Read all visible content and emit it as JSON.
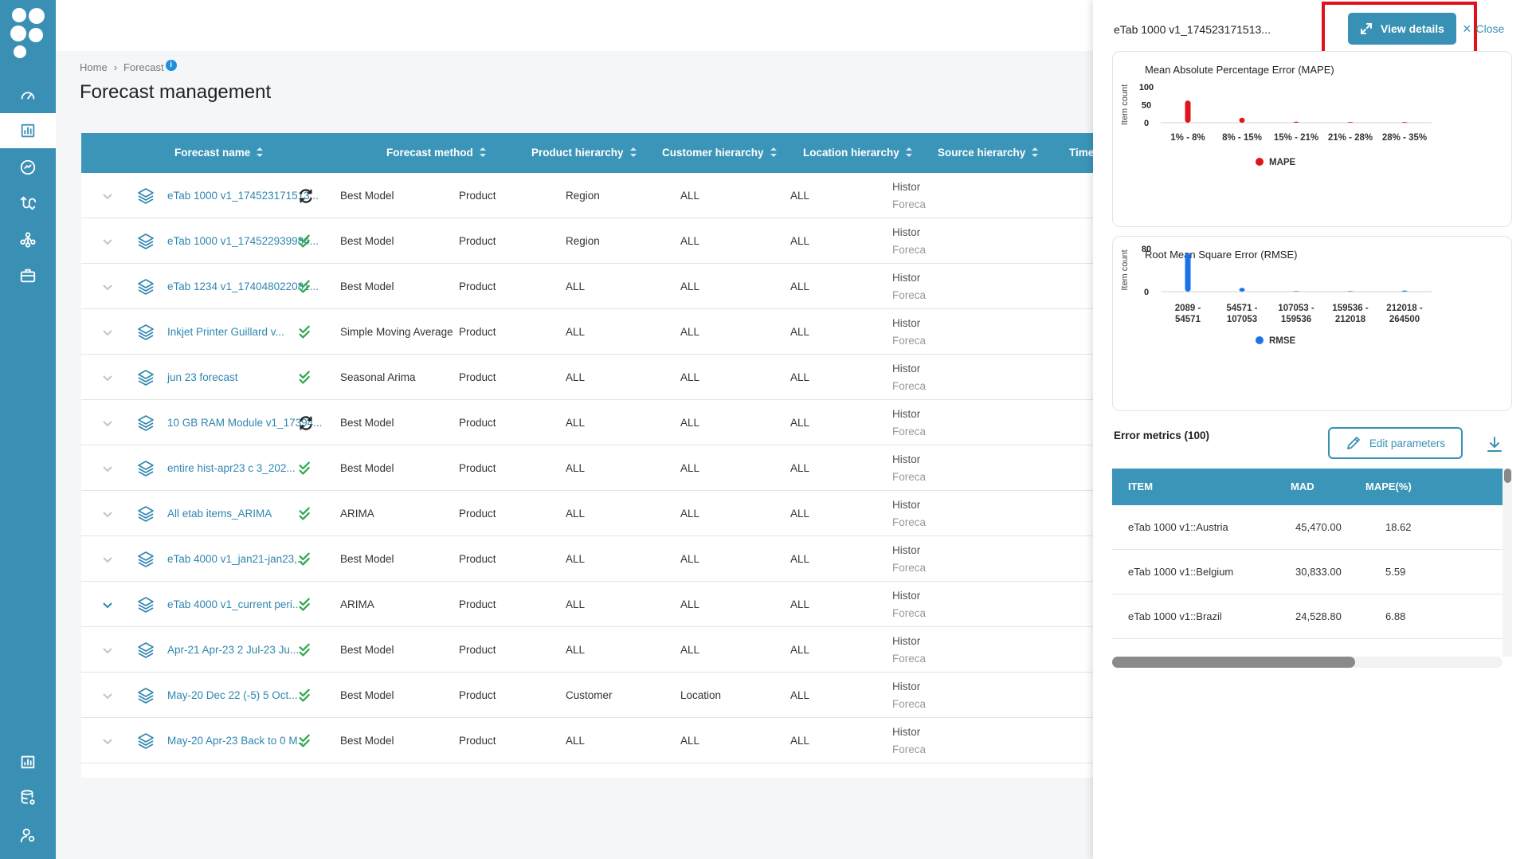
{
  "sidebar": {
    "logo": "app-logo",
    "items": [
      {
        "icon": "gauge-icon",
        "name": "nav-dashboard"
      },
      {
        "icon": "chart-icon",
        "name": "nav-forecast",
        "active": true
      },
      {
        "icon": "check-circle-icon",
        "name": "nav-analysis"
      },
      {
        "icon": "route-icon",
        "name": "nav-workflow"
      },
      {
        "icon": "hierarchy-icon",
        "name": "nav-hierarchy"
      },
      {
        "icon": "briefcase-icon",
        "name": "nav-tasks"
      },
      {
        "icon": "report-icon",
        "name": "nav-reports"
      },
      {
        "icon": "database-settings-icon",
        "name": "nav-data"
      },
      {
        "icon": "user-settings-icon",
        "name": "nav-users"
      }
    ]
  },
  "breadcrumb": {
    "home": "Home",
    "current": "Forecast",
    "info": "i"
  },
  "page_title": "Forecast management",
  "table": {
    "headers": {
      "name": "Forecast name",
      "method": "Forecast method",
      "product": "Product hierarchy",
      "customer": "Customer hierarchy",
      "location": "Location hierarchy",
      "source": "Source hierarchy",
      "time": "Time"
    },
    "rows": [
      {
        "name": "eTab 1000 v1_174523171513...",
        "status": "sync",
        "method": "Best Model",
        "product": "Product",
        "customer": "Region",
        "location": "ALL",
        "source": "ALL",
        "time1": "Histor",
        "time2": "Foreca"
      },
      {
        "name": "eTab 1000 v1_174522939984...",
        "status": "done",
        "method": "Best Model",
        "product": "Product",
        "customer": "Region",
        "location": "ALL",
        "source": "ALL",
        "time1": "Histor",
        "time2": "Foreca"
      },
      {
        "name": "eTab 1234 v1_174048022081...",
        "status": "done",
        "method": "Best Model",
        "product": "Product",
        "customer": "ALL",
        "location": "ALL",
        "source": "ALL",
        "time1": "Histor",
        "time2": "Foreca"
      },
      {
        "name": "Inkjet Printer Guillard v...",
        "status": "done",
        "method": "Simple Moving Average",
        "product": "Product",
        "customer": "ALL",
        "location": "ALL",
        "source": "ALL",
        "time1": "Histor",
        "time2": "Foreca"
      },
      {
        "name": "jun 23 forecast",
        "status": "done",
        "method": "Seasonal Arima",
        "product": "Product",
        "customer": "ALL",
        "location": "ALL",
        "source": "ALL",
        "time1": "Histor",
        "time2": "Foreca"
      },
      {
        "name": "10 GB RAM Module v1_17394...",
        "status": "sync",
        "method": "Best Model",
        "product": "Product",
        "customer": "ALL",
        "location": "ALL",
        "source": "ALL",
        "time1": "Histor",
        "time2": "Foreca"
      },
      {
        "name": "entire hist-apr23 c 3_202...",
        "status": "done",
        "method": "Best Model",
        "product": "Product",
        "customer": "ALL",
        "location": "ALL",
        "source": "ALL",
        "time1": "Histor",
        "time2": "Foreca"
      },
      {
        "name": "All etab items_ARIMA",
        "status": "done",
        "method": "ARIMA",
        "product": "Product",
        "customer": "ALL",
        "location": "ALL",
        "source": "ALL",
        "time1": "Histor",
        "time2": "Foreca"
      },
      {
        "name": "eTab 4000 v1_jan21-jan23,...",
        "status": "done",
        "method": "Best Model",
        "product": "Product",
        "customer": "ALL",
        "location": "ALL",
        "source": "ALL",
        "time1": "Histor",
        "time2": "Foreca"
      },
      {
        "name": "eTab 4000 v1_current peri...",
        "status": "done",
        "method": "ARIMA",
        "product": "Product",
        "customer": "ALL",
        "location": "ALL",
        "source": "ALL",
        "time1": "Histor",
        "time2": "Foreca",
        "expanded": true
      },
      {
        "name": "Apr-21    Apr-23    2    Jul-23 Ju...",
        "status": "done",
        "method": "Best Model",
        "product": "Product",
        "customer": "ALL",
        "location": "ALL",
        "source": "ALL",
        "time1": "Histor",
        "time2": "Foreca"
      },
      {
        "name": "May-20    Dec 22 (-5)    5 Oct...",
        "status": "done",
        "method": "Best Model",
        "product": "Product",
        "customer": "Customer",
        "location": "Location",
        "source": "ALL",
        "time1": "Histor",
        "time2": "Foreca"
      },
      {
        "name": "May-20    Apr-23    Back to 0 M...",
        "status": "done",
        "method": "Best Model",
        "product": "Product",
        "customer": "ALL",
        "location": "ALL",
        "source": "ALL",
        "time1": "Histor",
        "time2": "Foreca"
      }
    ]
  },
  "panel": {
    "title": "eTab 1000 v1_174523171513...",
    "view_details": "View details",
    "close": "Close",
    "metrics_title": "Error metrics (100)",
    "edit_parameters": "Edit parameters",
    "metrics_table": {
      "headers": {
        "item": "ITEM",
        "mad": "MAD",
        "mape": "MAPE(%)"
      },
      "rows": [
        {
          "item": "eTab 1000 v1::Austria",
          "mad": "45,470.00",
          "mape": "18.62"
        },
        {
          "item": "eTab 1000 v1::Belgium",
          "mad": "30,833.00",
          "mape": "5.59"
        },
        {
          "item": "eTab 1000 v1::Brazil",
          "mad": "24,528.80",
          "mape": "6.88"
        }
      ]
    }
  },
  "colors": {
    "accent": "#3b95b8",
    "mape": "#e0151b",
    "rmse": "#1a73e8",
    "done": "#2fa84f",
    "highlight": "#e0101c"
  },
  "chart_data": [
    {
      "type": "bar",
      "title": "Mean Absolute Percentage Error (MAPE)",
      "ylabel": "Item count",
      "xlabel": "",
      "categories": [
        "1% - 8%",
        "8% - 15%",
        "15% - 21%",
        "21% - 28%",
        "28% - 35%"
      ],
      "series": [
        {
          "name": "MAPE",
          "color": "#e0151b",
          "values": [
            62,
            14,
            3,
            2,
            2
          ]
        }
      ],
      "yticks": [
        0,
        50,
        100
      ],
      "ylim": [
        0,
        100
      ],
      "legend": "bottom-center"
    },
    {
      "type": "bar",
      "title": "Root Mean Square Error (RMSE)",
      "ylabel": "Item count",
      "xlabel": "",
      "categories": [
        "2089 - 54571",
        "54571 - 107053",
        "107053 - 159536",
        "159536 - 212018",
        "212018 - 264500"
      ],
      "category_lines": [
        [
          "2089 -",
          "54571"
        ],
        [
          "54571 -",
          "107053"
        ],
        [
          "107053 -",
          "159536"
        ],
        [
          "159536 -",
          "212018"
        ],
        [
          "212018 -",
          "264500"
        ]
      ],
      "series": [
        {
          "name": "RMSE",
          "color": "#1a73e8",
          "values": [
            72,
            7,
            1,
            1,
            2
          ]
        }
      ],
      "yticks": [
        0,
        80
      ],
      "ylim": [
        0,
        80
      ],
      "legend": "bottom-center"
    }
  ]
}
